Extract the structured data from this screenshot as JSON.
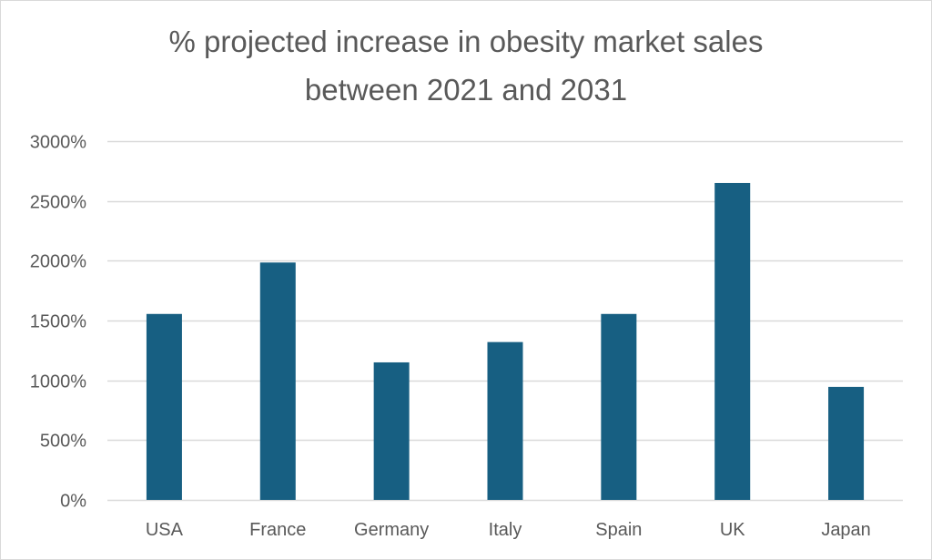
{
  "chart_data": {
    "type": "bar",
    "title": "% projected increase in obesity market sales between 2021 and 2031",
    "title_lines": [
      "% projected increase in obesity market sales",
      "between 2021 and 2031"
    ],
    "categories": [
      "USA",
      "France",
      "Germany",
      "Italy",
      "Spain",
      "UK",
      "Japan"
    ],
    "values": [
      1555,
      1985,
      1150,
      1320,
      1555,
      2650,
      945
    ],
    "value_unit": "%",
    "xlabel": "",
    "ylabel": "",
    "ylim": [
      0,
      3000
    ],
    "yticks": [
      0,
      500,
      1000,
      1500,
      2000,
      2500,
      3000
    ],
    "ytick_labels": [
      "0%",
      "500%",
      "1000%",
      "1500%",
      "2000%",
      "2500%",
      "3000%"
    ],
    "grid": true,
    "legend": "none",
    "bar_color": "#175f82",
    "grid_color": "#d9d9d9",
    "text_color": "#595959"
  }
}
